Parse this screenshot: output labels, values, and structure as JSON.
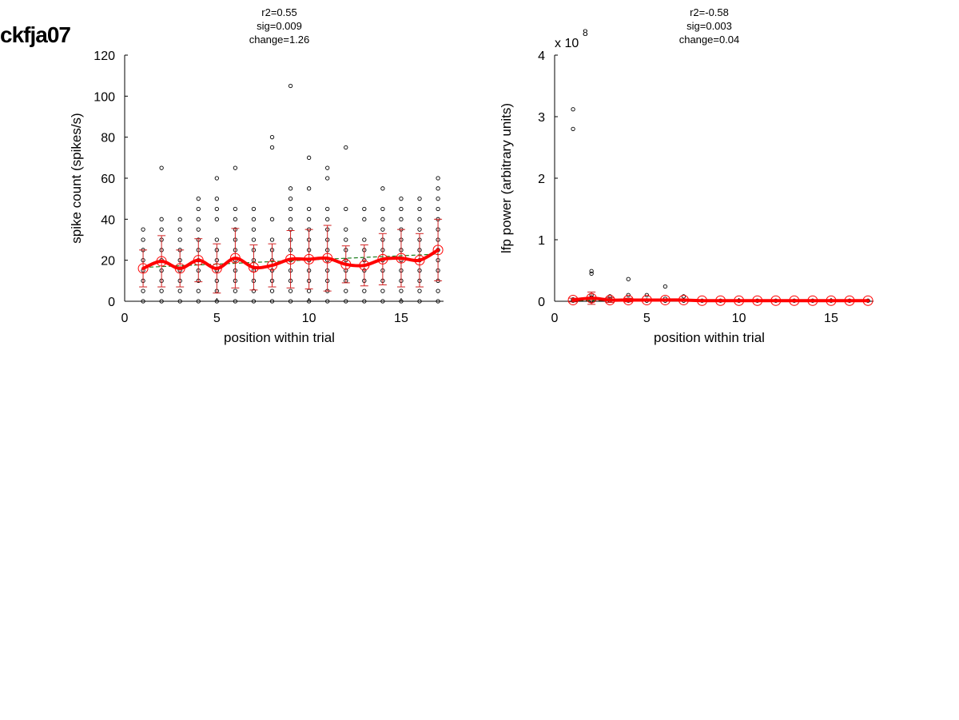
{
  "figure": {
    "title": "ckfja07"
  },
  "chart_data": [
    {
      "type": "scatter",
      "subtitle_lines": [
        "r2=0.55",
        "sig=0.009",
        "change=1.26"
      ],
      "xlabel": "position within trial",
      "ylabel": "spike count (spikes/s)",
      "xlim": [
        0,
        17.3
      ],
      "ylim": [
        0,
        120
      ],
      "xticks": [
        0,
        5,
        10,
        15
      ],
      "yticks": [
        0,
        20,
        40,
        60,
        80,
        100,
        120
      ],
      "scale_label": "",
      "grid": false,
      "colors": {
        "points": "#000000",
        "mean": "#ff0000",
        "errorbar": "#d02020",
        "fit": "#208020"
      },
      "points": [
        [
          1,
          0
        ],
        [
          1,
          5
        ],
        [
          1,
          10
        ],
        [
          1,
          15
        ],
        [
          1,
          20
        ],
        [
          1,
          25
        ],
        [
          1,
          30
        ],
        [
          1,
          35
        ],
        [
          2,
          0
        ],
        [
          2,
          5
        ],
        [
          2,
          10
        ],
        [
          2,
          15
        ],
        [
          2,
          20
        ],
        [
          2,
          25
        ],
        [
          2,
          30
        ],
        [
          2,
          35
        ],
        [
          2,
          40
        ],
        [
          2,
          65
        ],
        [
          3,
          0
        ],
        [
          3,
          5
        ],
        [
          3,
          10
        ],
        [
          3,
          15
        ],
        [
          3,
          20
        ],
        [
          3,
          25
        ],
        [
          3,
          30
        ],
        [
          3,
          35
        ],
        [
          3,
          40
        ],
        [
          4,
          0
        ],
        [
          4,
          5
        ],
        [
          4,
          10
        ],
        [
          4,
          15
        ],
        [
          4,
          20
        ],
        [
          4,
          25
        ],
        [
          4,
          30
        ],
        [
          4,
          35
        ],
        [
          4,
          40
        ],
        [
          4,
          45
        ],
        [
          4,
          50
        ],
        [
          5,
          0
        ],
        [
          5,
          5
        ],
        [
          5,
          10
        ],
        [
          5,
          15
        ],
        [
          5,
          20
        ],
        [
          5,
          25
        ],
        [
          5,
          30
        ],
        [
          5,
          40
        ],
        [
          5,
          45
        ],
        [
          5,
          50
        ],
        [
          5,
          60
        ],
        [
          6,
          0
        ],
        [
          6,
          5
        ],
        [
          6,
          10
        ],
        [
          6,
          15
        ],
        [
          6,
          20
        ],
        [
          6,
          25
        ],
        [
          6,
          30
        ],
        [
          6,
          35
        ],
        [
          6,
          40
        ],
        [
          6,
          45
        ],
        [
          6,
          65
        ],
        [
          7,
          0
        ],
        [
          7,
          5
        ],
        [
          7,
          10
        ],
        [
          7,
          15
        ],
        [
          7,
          20
        ],
        [
          7,
          25
        ],
        [
          7,
          30
        ],
        [
          7,
          35
        ],
        [
          7,
          40
        ],
        [
          7,
          45
        ],
        [
          8,
          0
        ],
        [
          8,
          5
        ],
        [
          8,
          10
        ],
        [
          8,
          15
        ],
        [
          8,
          20
        ],
        [
          8,
          25
        ],
        [
          8,
          30
        ],
        [
          8,
          40
        ],
        [
          8,
          75
        ],
        [
          8,
          80
        ],
        [
          9,
          0
        ],
        [
          9,
          5
        ],
        [
          9,
          10
        ],
        [
          9,
          15
        ],
        [
          9,
          20
        ],
        [
          9,
          25
        ],
        [
          9,
          30
        ],
        [
          9,
          35
        ],
        [
          9,
          40
        ],
        [
          9,
          45
        ],
        [
          9,
          50
        ],
        [
          9,
          55
        ],
        [
          9,
          105
        ],
        [
          10,
          0
        ],
        [
          10,
          5
        ],
        [
          10,
          10
        ],
        [
          10,
          15
        ],
        [
          10,
          20
        ],
        [
          10,
          25
        ],
        [
          10,
          30
        ],
        [
          10,
          35
        ],
        [
          10,
          40
        ],
        [
          10,
          45
        ],
        [
          10,
          55
        ],
        [
          10,
          70
        ],
        [
          11,
          0
        ],
        [
          11,
          5
        ],
        [
          11,
          10
        ],
        [
          11,
          15
        ],
        [
          11,
          20
        ],
        [
          11,
          25
        ],
        [
          11,
          30
        ],
        [
          11,
          35
        ],
        [
          11,
          40
        ],
        [
          11,
          45
        ],
        [
          11,
          60
        ],
        [
          11,
          65
        ],
        [
          12,
          0
        ],
        [
          12,
          5
        ],
        [
          12,
          10
        ],
        [
          12,
          15
        ],
        [
          12,
          20
        ],
        [
          12,
          25
        ],
        [
          12,
          30
        ],
        [
          12,
          35
        ],
        [
          12,
          45
        ],
        [
          12,
          75
        ],
        [
          13,
          0
        ],
        [
          13,
          5
        ],
        [
          13,
          10
        ],
        [
          13,
          15
        ],
        [
          13,
          20
        ],
        [
          13,
          25
        ],
        [
          13,
          30
        ],
        [
          13,
          40
        ],
        [
          13,
          45
        ],
        [
          14,
          0
        ],
        [
          14,
          5
        ],
        [
          14,
          10
        ],
        [
          14,
          15
        ],
        [
          14,
          20
        ],
        [
          14,
          25
        ],
        [
          14,
          30
        ],
        [
          14,
          35
        ],
        [
          14,
          40
        ],
        [
          14,
          45
        ],
        [
          14,
          55
        ],
        [
          15,
          0
        ],
        [
          15,
          5
        ],
        [
          15,
          10
        ],
        [
          15,
          15
        ],
        [
          15,
          20
        ],
        [
          15,
          25
        ],
        [
          15,
          30
        ],
        [
          15,
          35
        ],
        [
          15,
          40
        ],
        [
          15,
          45
        ],
        [
          15,
          50
        ],
        [
          16,
          0
        ],
        [
          16,
          5
        ],
        [
          16,
          10
        ],
        [
          16,
          15
        ],
        [
          16,
          20
        ],
        [
          16,
          25
        ],
        [
          16,
          30
        ],
        [
          16,
          35
        ],
        [
          16,
          40
        ],
        [
          16,
          45
        ],
        [
          16,
          50
        ],
        [
          17,
          0
        ],
        [
          17,
          5
        ],
        [
          17,
          10
        ],
        [
          17,
          15
        ],
        [
          17,
          20
        ],
        [
          17,
          25
        ],
        [
          17,
          30
        ],
        [
          17,
          35
        ],
        [
          17,
          40
        ],
        [
          17,
          45
        ],
        [
          17,
          50
        ],
        [
          17,
          55
        ],
        [
          17,
          60
        ]
      ],
      "means": [
        16,
        19.5,
        16,
        20,
        16,
        21,
        16.5,
        17.5,
        20.5,
        20.5,
        21,
        18,
        17.5,
        20.5,
        21,
        20,
        25
      ],
      "errors": [
        9,
        12.5,
        9,
        10.5,
        12,
        14.5,
        11,
        10.5,
        14,
        14.5,
        16,
        9,
        10,
        12.5,
        14,
        13,
        15
      ],
      "fit": {
        "x": [
          1,
          17
        ],
        "y": [
          16.5,
          23
        ]
      }
    },
    {
      "type": "scatter",
      "subtitle_lines": [
        "r2=-0.58",
        "sig=0.003",
        "change=0.04"
      ],
      "xlabel": "position within trial",
      "ylabel": "lfp power (arbitrary units)",
      "xlim": [
        0,
        17.3
      ],
      "ylim": [
        0,
        4
      ],
      "xticks": [
        0,
        5,
        10,
        15
      ],
      "yticks": [
        0,
        1,
        2,
        3,
        4
      ],
      "scale_label": "x 10",
      "scale_exponent": "8",
      "grid": false,
      "colors": {
        "points": "#000000",
        "mean": "#ff0000",
        "errorbar": "#d02020",
        "fit": "#208020"
      },
      "points": [
        [
          1,
          0.01
        ],
        [
          1,
          0.03
        ],
        [
          1,
          2.8
        ],
        [
          1,
          3.12
        ],
        [
          2,
          0.01
        ],
        [
          2,
          0.06
        ],
        [
          2,
          0.1
        ],
        [
          2,
          0.45
        ],
        [
          2,
          0.49
        ],
        [
          3,
          0.01
        ],
        [
          3,
          0.04
        ],
        [
          3,
          0.08
        ],
        [
          4,
          0.01
        ],
        [
          4,
          0.1
        ],
        [
          4,
          0.36
        ],
        [
          5,
          0.01
        ],
        [
          5,
          0.1
        ],
        [
          6,
          0.01
        ],
        [
          6,
          0.04
        ],
        [
          6,
          0.24
        ],
        [
          7,
          0.01
        ],
        [
          7,
          0.08
        ],
        [
          8,
          0.01
        ],
        [
          9,
          0.01
        ],
        [
          10,
          0.01
        ],
        [
          11,
          0.01
        ],
        [
          12,
          0.01
        ],
        [
          13,
          0.01
        ],
        [
          14,
          0.01
        ],
        [
          15,
          0.01
        ],
        [
          16,
          0.01
        ],
        [
          17,
          0.01
        ]
      ],
      "means": [
        0.02,
        0.05,
        0.02,
        0.02,
        0.02,
        0.02,
        0.02,
        0.01,
        0.01,
        0.01,
        0.01,
        0.01,
        0.01,
        0.01,
        0.01,
        0.01,
        0.01
      ],
      "errors": [
        0.03,
        0.1,
        0.04,
        0.03,
        0.02,
        0.02,
        0.01,
        0,
        0,
        0,
        0,
        0,
        0,
        0,
        0,
        0,
        0
      ],
      "fit": {
        "x": [
          1,
          17
        ],
        "y": [
          0.015,
          0.01
        ]
      }
    }
  ]
}
